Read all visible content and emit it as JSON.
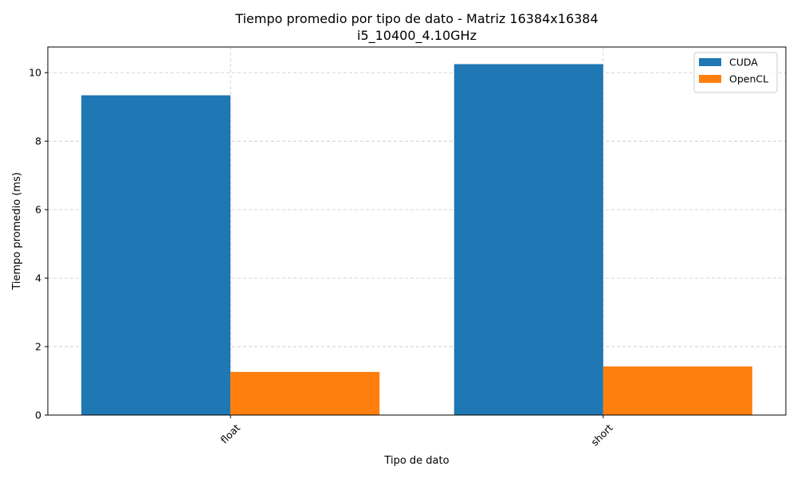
{
  "chart_data": {
    "type": "bar",
    "title": "Tiempo promedio por tipo de dato - Matriz 16384x16384",
    "subtitle": "i5_10400_4.10GHz",
    "xlabel": "Tipo de dato",
    "ylabel": "Tiempo promedio (ms)",
    "categories": [
      "float",
      "short"
    ],
    "series": [
      {
        "name": "CUDA",
        "values": [
          9.34,
          10.25
        ],
        "color": "#1f77b4"
      },
      {
        "name": "OpenCL",
        "values": [
          1.26,
          1.42
        ],
        "color": "#ff7f0e"
      }
    ],
    "ylim": [
      0,
      10.75
    ],
    "yticks": [
      0,
      2,
      4,
      6,
      8,
      10
    ],
    "grid": true,
    "legend_position": "top-right"
  }
}
